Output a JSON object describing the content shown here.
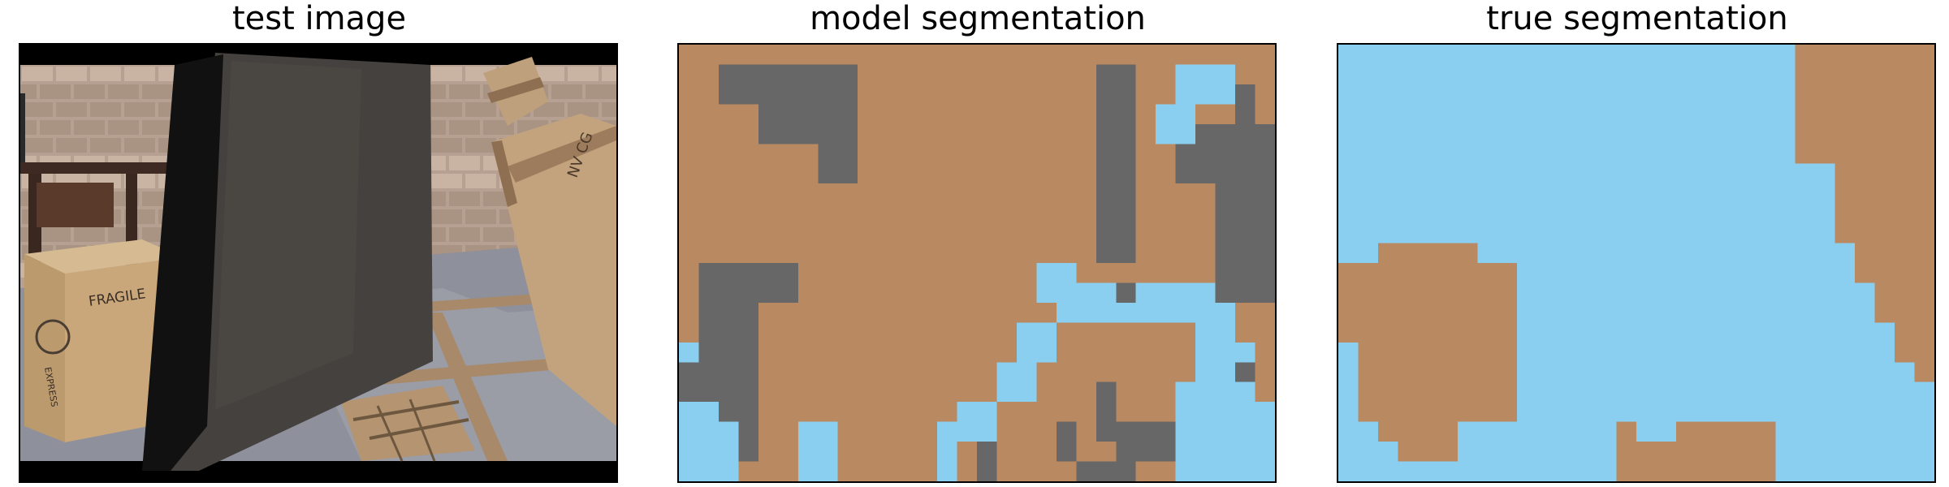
{
  "figure": {
    "panels": [
      {
        "title": "test image"
      },
      {
        "title": "model segmentation"
      },
      {
        "title": "true segmentation"
      }
    ],
    "colors": {
      "box": "#B98A62",
      "sky": "#8ACFEF",
      "gray": "#676767",
      "black": "#000000",
      "wall_brick": "#B7A08F",
      "panel_dark": "#3A3735",
      "floor": "#8B8E99",
      "cardboard": "#C8A57A",
      "wood": "#A98A68"
    },
    "photo_labels": {
      "fragile": "FRAGILE",
      "express": "EXPRESS",
      "crate_text": "NV CG"
    }
  }
}
